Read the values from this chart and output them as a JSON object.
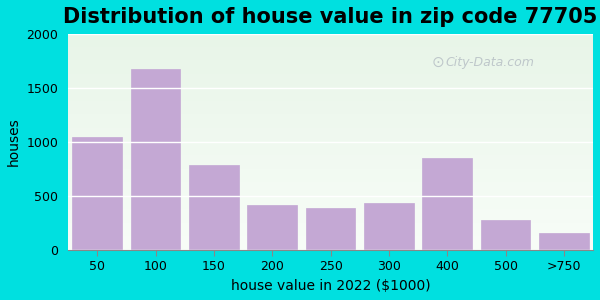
{
  "title": "Distribution of house value in zip code 77705",
  "xlabel": "house value in 2022 ($1000)",
  "ylabel": "houses",
  "categories": [
    "50",
    "100",
    "150",
    "200",
    "250",
    "300",
    "400",
    "500",
    ">750"
  ],
  "values": [
    1050,
    1680,
    790,
    415,
    385,
    440,
    850,
    275,
    155
  ],
  "bar_color": "#c4a8d4",
  "bar_edge_color": "#c4a8d4",
  "ylim": [
    0,
    2000
  ],
  "yticks": [
    0,
    500,
    1000,
    1500,
    2000
  ],
  "bg_outer": "#00e0e0",
  "bg_inner": "#eaf5ea",
  "title_fontsize": 15,
  "axis_label_fontsize": 10,
  "tick_fontsize": 9,
  "watermark_text": "City-Data.com",
  "watermark_color": "#b0b8c0"
}
